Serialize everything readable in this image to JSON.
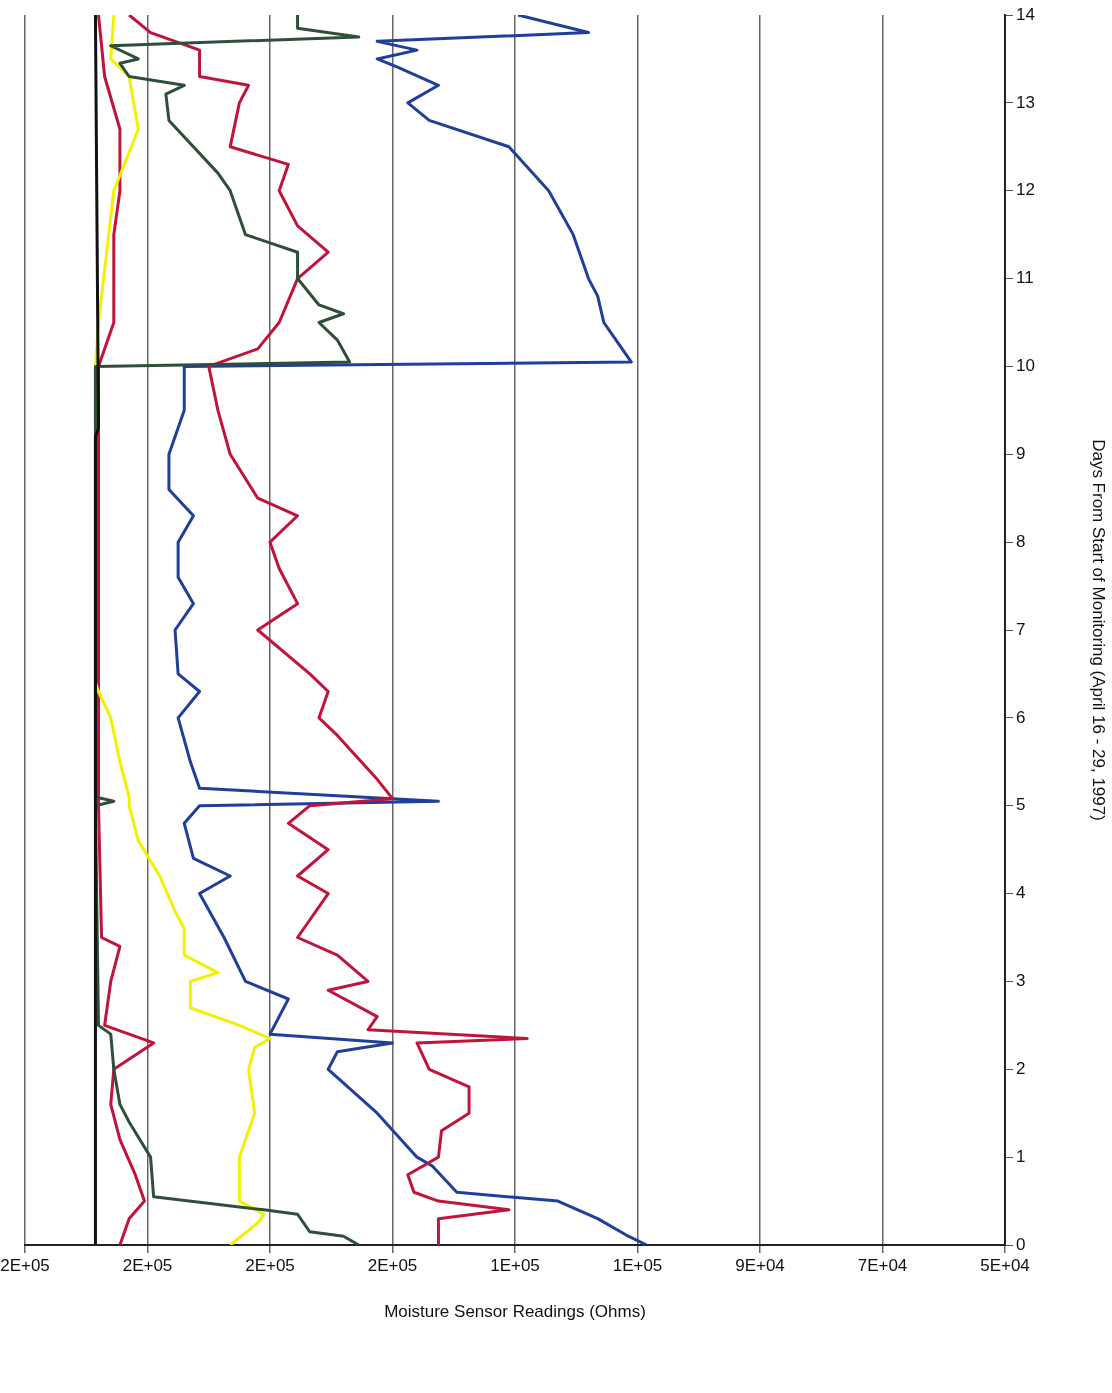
{
  "chart_data": {
    "type": "line",
    "xlabel": "Moisture Sensor Readings (Ohms)",
    "ylabel": "Days From Start of Monitoring (April 16 - 29, 1997)",
    "ylim": [
      0,
      14
    ],
    "yticks": [
      0,
      1,
      2,
      3,
      4,
      5,
      6,
      7,
      8,
      9,
      10,
      11,
      12,
      13,
      14
    ],
    "xlim": [
      210000,
      50000
    ],
    "xticks": [
      {
        "value": 50000,
        "label": "5E+04"
      },
      {
        "value": 70000,
        "label": "7E+04"
      },
      {
        "value": 90000,
        "label": "9E+04"
      },
      {
        "value": 110000,
        "label": "1E+05"
      },
      {
        "value": 130000,
        "label": "1E+05"
      },
      {
        "value": 150000,
        "label": "2E+05"
      },
      {
        "value": 170000,
        "label": "2E+05"
      },
      {
        "value": 190000,
        "label": "2E+05"
      },
      {
        "value": 210000,
        "label": "2E+05"
      }
    ],
    "grid": "x",
    "legend": false,
    "marker": "none",
    "line_style": "solid",
    "series": [
      {
        "color": "#111111",
        "values": [
          0,
          9.2,
          9.3,
          14
        ],
        "x": [
          198500,
          198500,
          198000,
          198500
        ]
      },
      {
        "color": "#2f4f3a",
        "values": [
          0,
          0.1,
          0.15,
          0.35,
          0.4,
          0.55,
          1.0,
          1.4,
          1.6,
          2.0,
          2.4,
          2.5,
          5.0,
          5.05,
          5.1,
          10.0,
          10.05,
          10.3,
          10.5,
          10.6,
          10.7,
          11.0,
          11.3,
          11.5,
          12.0,
          12.2,
          12.8,
          13.1,
          13.2,
          13.3,
          13.45,
          13.5,
          13.65,
          13.75,
          13.85,
          14
        ],
        "x": [
          155500,
          158000,
          163500,
          165500,
          171000,
          189000,
          189500,
          193000,
          194500,
          195500,
          196000,
          198000,
          198500,
          195500,
          198500,
          198500,
          157000,
          159000,
          162000,
          158000,
          162000,
          165500,
          165500,
          174000,
          176500,
          178500,
          186500,
          187000,
          184000,
          193000,
          194500,
          191500,
          196000,
          155500,
          165500,
          165500
        ]
      },
      {
        "color": "#f2f200",
        "values": [
          0,
          0.25,
          0.35,
          0.5,
          1.0,
          1.5,
          2.0,
          2.25,
          2.35,
          2.5,
          2.7,
          3.0,
          3.1,
          3.3,
          3.6,
          3.8,
          4.2,
          4.6,
          5.0,
          5.1,
          5.5,
          6.0,
          6.3,
          6.4,
          10,
          10.5,
          12,
          12.7,
          13.3,
          13.5,
          14
        ],
        "x": [
          176500,
          172000,
          171000,
          175000,
          175000,
          172500,
          173500,
          172500,
          170000,
          175000,
          183000,
          183000,
          178500,
          184000,
          184000,
          185500,
          188000,
          191500,
          193000,
          193000,
          194500,
          196000,
          198000,
          198500,
          198500,
          198000,
          195500,
          191500,
          193000,
          196000,
          195500
        ]
      },
      {
        "color": "#c0143c",
        "values": [
          0,
          0.3,
          0.5,
          0.8,
          1.2,
          1.6,
          2.0,
          2.3,
          2.5,
          3.0,
          3.4,
          3.5,
          5,
          10,
          10.5,
          11.5,
          12,
          12.7,
          13.3,
          14
        ],
        "x": [
          194500,
          193000,
          190500,
          192000,
          194500,
          196000,
          195500,
          189000,
          197000,
          196000,
          194500,
          197500,
          198000,
          198000,
          195500,
          195500,
          194500,
          194500,
          197000,
          198000
        ]
      },
      {
        "color": "#c0143c",
        "values": [
          0,
          0.3,
          0.4,
          0.5,
          0.6,
          0.8,
          1.0,
          1.3,
          1.5,
          1.8,
          2.0,
          2.3,
          2.35,
          2.45,
          2.6,
          2.9,
          3.0,
          3.3,
          3.5,
          4.0,
          4.2,
          4.5,
          4.8,
          5.0,
          5.08,
          5.3,
          5.8,
          6.0,
          6.3,
          6.5,
          7.0,
          7.3,
          7.7,
          8.0,
          8.3,
          8.5,
          9.0,
          9.5,
          10.0,
          10.2,
          10.5,
          11,
          11.3,
          11.6,
          12,
          12.3,
          12.5,
          13,
          13.2,
          13.3,
          13.6,
          13.8,
          14
        ],
        "x": [
          142500,
          142500,
          131000,
          142500,
          146500,
          147500,
          142500,
          142000,
          137500,
          137500,
          144000,
          146000,
          128000,
          154000,
          152500,
          160500,
          154000,
          159000,
          165500,
          160500,
          165500,
          160500,
          167000,
          163500,
          150000,
          152500,
          159000,
          162000,
          160500,
          163500,
          172000,
          165500,
          168500,
          170000,
          165500,
          172000,
          176500,
          178500,
          180000,
          172000,
          168500,
          165500,
          160500,
          165500,
          168500,
          167000,
          176500,
          175000,
          173500,
          181500,
          181500,
          189500,
          193000
        ]
      },
      {
        "color": "#1f3f99",
        "values": [
          0,
          0.1,
          0.3,
          0.5,
          0.6,
          0.9,
          1.0,
          1.5,
          2.0,
          2.2,
          2.3,
          2.4,
          2.8,
          3.0,
          3.5,
          4.0,
          4.2,
          4.4,
          4.8,
          5.0,
          5.05,
          5.2,
          5.5,
          6.0,
          6.3,
          6.5,
          7.0,
          7.3,
          7.6,
          8.0,
          8.3,
          8.6,
          9.0,
          9.5,
          10.0,
          10.05,
          10.3,
          10.5,
          10.8,
          11,
          11.5,
          12,
          12.5,
          12.8,
          13.0,
          13.2,
          13.4,
          13.5,
          13.6,
          13.7,
          13.8,
          14
        ],
        "x": [
          108500,
          111500,
          116500,
          123000,
          139500,
          143500,
          146000,
          152500,
          160500,
          159000,
          150000,
          170000,
          167000,
          174000,
          177500,
          181500,
          176500,
          182500,
          184000,
          181500,
          142500,
          181500,
          183000,
          185000,
          181500,
          185000,
          185500,
          182500,
          185000,
          185000,
          182500,
          186500,
          186500,
          184000,
          184000,
          111000,
          113500,
          115500,
          116500,
          118000,
          120500,
          124500,
          131000,
          144000,
          147500,
          142500,
          149000,
          152500,
          146000,
          152500,
          118000,
          129500
        ]
      }
    ]
  }
}
